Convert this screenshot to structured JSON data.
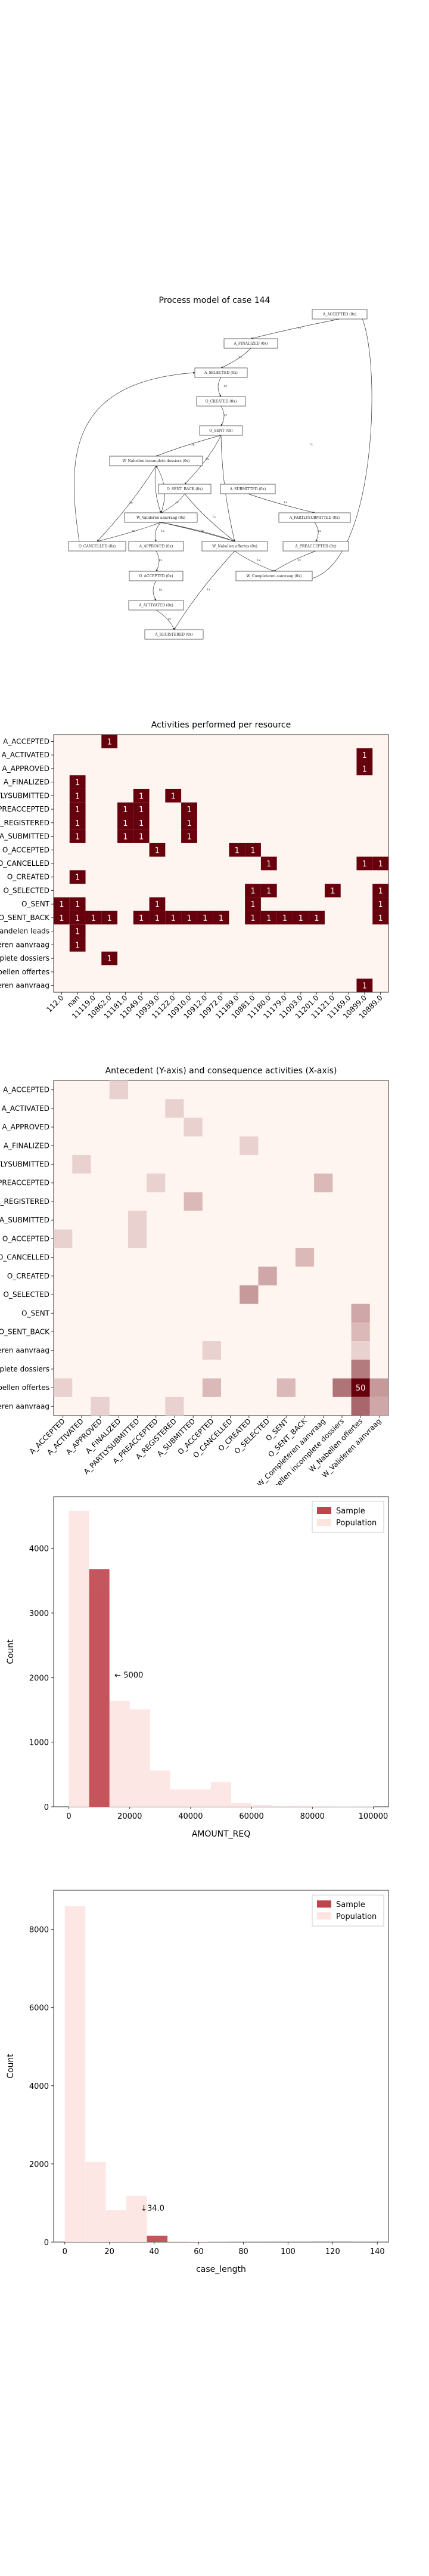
{
  "process_model": {
    "title": "Process model of case 144",
    "nodes": [
      {
        "id": "A_ACCEPTED",
        "label": "A_ACCEPTED (0x)"
      },
      {
        "id": "A_FINALIZED",
        "label": "A_FINALIZED (0x)"
      },
      {
        "id": "A_SELECTED",
        "label": "A_SELECTED (0x)"
      },
      {
        "id": "O_CREATED",
        "label": "O_CREATED (0x)"
      },
      {
        "id": "O_SENT",
        "label": "O_SENT (0x)"
      },
      {
        "id": "W_nabellen_onv",
        "label": "W_Nabellen incomplete dossiers (0x)"
      },
      {
        "id": "O_SENT_BACK",
        "label": "O_SENT_BACK (0x)"
      },
      {
        "id": "A_SUBMITTED",
        "label": "A_SUBMITTED (0x)"
      },
      {
        "id": "W_valideren",
        "label": "W_Valideren aanvraag (0x)"
      },
      {
        "id": "A_PARTLYSUBMITTED",
        "label": "A_PARTLYSUBMITTED (0x)"
      },
      {
        "id": "O_CANCELLED",
        "label": "O_CANCELLED (0x)"
      },
      {
        "id": "A_APPROVED",
        "label": "A_APPROVED (0x)"
      },
      {
        "id": "W_nabellen_off",
        "label": "W_Nabellen offertes (0x)"
      },
      {
        "id": "A_PREACCEPTED",
        "label": "A_PREACCEPTED (0x)"
      },
      {
        "id": "O_ACCEPTED",
        "label": "O_ACCEPTED (0x)"
      },
      {
        "id": "W_completeren",
        "label": "W_Completeren aanvraag (0x)"
      },
      {
        "id": "A_ACTIVATED",
        "label": "A_ACTIVATED (0x)"
      },
      {
        "id": "A_REGISTERED",
        "label": "A_REGISTERED (0x)"
      }
    ],
    "edge_labels": [
      "1x",
      "1x",
      "1x",
      "1x",
      "1x",
      "1x",
      "1x",
      "1x",
      "1x",
      "1x",
      "1x",
      "1x",
      "1x",
      "1x",
      "1x",
      "1x",
      "1x",
      "1x",
      "1x",
      "1x",
      "1x",
      "1x",
      "1x",
      "1x",
      "1x",
      "1x"
    ]
  },
  "chart_data": [
    {
      "type": "heatmap",
      "title": "Activities performed per resource",
      "xlabel": "",
      "ylabel": "",
      "x_tick_labels": [
        "112.0",
        "nan",
        "11119.0",
        "10862.0",
        "11181.0",
        "11049.0",
        "10939.0",
        "11122.0",
        "10910.0",
        "10912.0",
        "10972.0",
        "11189.0",
        "10881.0",
        "11180.0",
        "11179.0",
        "11003.0",
        "11201.0",
        "11121.0",
        "11169.0",
        "10899.0",
        "10889.0"
      ],
      "y_tick_labels": [
        "A_ACCEPTED",
        "A_ACTIVATED",
        "A_APPROVED",
        "A_FINALIZED",
        "A_PARTLYSUBMITTED",
        "A_PREACCEPTED",
        "A_REGISTERED",
        "A_SUBMITTED",
        "O_ACCEPTED",
        "O_CANCELLED",
        "O_CREATED",
        "O_SELECTED",
        "O_SENT",
        "O_SENT_BACK",
        "W_Afhandelen leads",
        "W_Completeren aanvraag",
        "W_Nabellen incomplete dossiers",
        "W_Nabellen offertes",
        "W_Valideren aanvraag"
      ],
      "cells": [
        {
          "row": 0,
          "col": 3,
          "value": 1
        },
        {
          "row": 1,
          "col": 19,
          "value": 1
        },
        {
          "row": 2,
          "col": 19,
          "value": 1
        },
        {
          "row": 3,
          "col": 1,
          "value": 1
        },
        {
          "row": 4,
          "col": 1,
          "value": 1
        },
        {
          "row": 4,
          "col": 5,
          "value": 1
        },
        {
          "row": 4,
          "col": 7,
          "value": 1
        },
        {
          "row": 5,
          "col": 1,
          "value": 1
        },
        {
          "row": 5,
          "col": 4,
          "value": 1
        },
        {
          "row": 5,
          "col": 5,
          "value": 1
        },
        {
          "row": 5,
          "col": 8,
          "value": 1
        },
        {
          "row": 6,
          "col": 1,
          "value": 1
        },
        {
          "row": 6,
          "col": 4,
          "value": 1
        },
        {
          "row": 6,
          "col": 5,
          "value": 1
        },
        {
          "row": 6,
          "col": 8,
          "value": 1
        },
        {
          "row": 7,
          "col": 1,
          "value": 1
        },
        {
          "row": 7,
          "col": 4,
          "value": 1
        },
        {
          "row": 7,
          "col": 5,
          "value": 1
        },
        {
          "row": 7,
          "col": 8,
          "value": 1
        },
        {
          "row": 8,
          "col": 6,
          "value": 1
        },
        {
          "row": 8,
          "col": 11,
          "value": 1
        },
        {
          "row": 8,
          "col": 12,
          "value": 1
        },
        {
          "row": 9,
          "col": 13,
          "value": 1
        },
        {
          "row": 9,
          "col": 19,
          "value": 1
        },
        {
          "row": 9,
          "col": 20,
          "value": 1
        },
        {
          "row": 10,
          "col": 1,
          "value": 1
        },
        {
          "row": 11,
          "col": 12,
          "value": 1
        },
        {
          "row": 11,
          "col": 13,
          "value": 1
        },
        {
          "row": 11,
          "col": 17,
          "value": 1
        },
        {
          "row": 11,
          "col": 20,
          "value": 1
        },
        {
          "row": 12,
          "col": 0,
          "value": 1
        },
        {
          "row": 12,
          "col": 1,
          "value": 1
        },
        {
          "row": 12,
          "col": 6,
          "value": 1
        },
        {
          "row": 12,
          "col": 12,
          "value": 1
        },
        {
          "row": 12,
          "col": 20,
          "value": 1
        },
        {
          "row": 13,
          "col": 0,
          "value": 1
        },
        {
          "row": 13,
          "col": 1,
          "value": 1
        },
        {
          "row": 13,
          "col": 2,
          "value": 1
        },
        {
          "row": 13,
          "col": 3,
          "value": 1
        },
        {
          "row": 13,
          "col": 5,
          "value": 1
        },
        {
          "row": 13,
          "col": 6,
          "value": 1
        },
        {
          "row": 13,
          "col": 7,
          "value": 1
        },
        {
          "row": 13,
          "col": 8,
          "value": 1
        },
        {
          "row": 13,
          "col": 9,
          "value": 1
        },
        {
          "row": 13,
          "col": 10,
          "value": 1
        },
        {
          "row": 13,
          "col": 12,
          "value": 1
        },
        {
          "row": 13,
          "col": 13,
          "value": 1
        },
        {
          "row": 13,
          "col": 14,
          "value": 1
        },
        {
          "row": 13,
          "col": 15,
          "value": 1
        },
        {
          "row": 13,
          "col": 16,
          "value": 1
        },
        {
          "row": 13,
          "col": 20,
          "value": 1
        },
        {
          "row": 14,
          "col": 1,
          "value": 1
        },
        {
          "row": 15,
          "col": 1,
          "value": 1
        },
        {
          "row": 16,
          "col": 3,
          "value": 1
        },
        {
          "row": 18,
          "col": 19,
          "value": 1
        }
      ]
    },
    {
      "type": "heatmap",
      "title": "Antecedent (Y-axis) and consequence activities (X-axis)",
      "xlabel": "",
      "ylabel": "",
      "x_tick_labels": [
        "A_ACCEPTED",
        "A_ACTIVATED",
        "A_APPROVED",
        "A_FINALIZED",
        "A_PARTLYSUBMITTED",
        "A_PREACCEPTED",
        "A_REGISTERED",
        "A_SUBMITTED",
        "O_ACCEPTED",
        "O_CANCELLED",
        "O_CREATED",
        "O_SELECTED",
        "O_SENT",
        "O_SENT_BACK",
        "W_Completeren aanvraag",
        "W_Nabellen incomplete dossiers",
        "W_Nabellen offertes",
        "W_Valideren aanvraag"
      ],
      "y_tick_labels": [
        "A_ACCEPTED",
        "A_ACTIVATED",
        "A_APPROVED",
        "A_FINALIZED",
        "A_PARTLYSUBMITTED",
        "A_PREACCEPTED",
        "A_REGISTERED",
        "A_SUBMITTED",
        "O_ACCEPTED",
        "O_CANCELLED",
        "O_CREATED",
        "O_SELECTED",
        "O_SENT",
        "O_SENT_BACK",
        "W_Completeren aanvraag",
        "W_Nabellen incomplete dossiers",
        "W_Nabellen offertes",
        "W_Valideren aanvraag"
      ],
      "max_value": 50,
      "cells": [
        {
          "row": 0,
          "col": 3,
          "value": 1
        },
        {
          "row": 1,
          "col": 6,
          "value": 1
        },
        {
          "row": 2,
          "col": 7,
          "value": 1
        },
        {
          "row": 3,
          "col": 10,
          "value": 1
        },
        {
          "row": 4,
          "col": 1,
          "value": 1
        },
        {
          "row": 5,
          "col": 5,
          "value": 1
        },
        {
          "row": 5,
          "col": 14,
          "value": 2
        },
        {
          "row": 6,
          "col": 7,
          "value": 2
        },
        {
          "row": 7,
          "col": 4,
          "value": 1
        },
        {
          "row": 8,
          "col": 0,
          "value": 1
        },
        {
          "row": 8,
          "col": 4,
          "value": 1
        },
        {
          "row": 9,
          "col": 13,
          "value": 2
        },
        {
          "row": 10,
          "col": 11,
          "value": 3
        },
        {
          "row": 11,
          "col": 10,
          "value": 4
        },
        {
          "row": 12,
          "col": 16,
          "value": 3
        },
        {
          "row": 13,
          "col": 16,
          "value": 2
        },
        {
          "row": 14,
          "col": 16,
          "value": 1
        },
        {
          "row": 14,
          "col": 8,
          "value": 1
        },
        {
          "row": 15,
          "col": 16,
          "value": 7
        },
        {
          "row": 16,
          "col": 0,
          "value": 1
        },
        {
          "row": 16,
          "col": 8,
          "value": 2
        },
        {
          "row": 16,
          "col": 12,
          "value": 2
        },
        {
          "row": 16,
          "col": 15,
          "value": 8
        },
        {
          "row": 16,
          "col": 16,
          "value": 50
        },
        {
          "row": 16,
          "col": 17,
          "value": 4
        },
        {
          "row": 17,
          "col": 2,
          "value": 1
        },
        {
          "row": 17,
          "col": 6,
          "value": 1
        },
        {
          "row": 17,
          "col": 16,
          "value": 10
        },
        {
          "row": 17,
          "col": 17,
          "value": 3
        }
      ]
    },
    {
      "type": "bar",
      "title": "",
      "xlabel": "AMOUNT_REQ",
      "ylabel": "Count",
      "xlim": [
        -5000,
        105000
      ],
      "ylim": [
        0,
        4800
      ],
      "x_ticks": [
        0,
        20000,
        40000,
        60000,
        80000,
        100000
      ],
      "y_ticks": [
        0,
        1000,
        2000,
        3000,
        4000
      ],
      "bin_edges": [
        0,
        6667,
        13333,
        20000,
        26667,
        33333,
        40000,
        46667,
        53333,
        60000,
        66667,
        73333,
        80000,
        86667,
        93333,
        100000
      ],
      "series": [
        {
          "name": "Sample",
          "color": "#c0444c",
          "values": [
            0,
            3680,
            0,
            0,
            0,
            0,
            0,
            0,
            0,
            0,
            0,
            0,
            0,
            0,
            0
          ]
        },
        {
          "name": "Population",
          "color": "#fde4e1",
          "values": [
            4580,
            3350,
            1640,
            1510,
            560,
            270,
            270,
            380,
            60,
            30,
            10,
            15,
            8,
            5,
            8
          ]
        }
      ],
      "annotation": "← 5000",
      "annotation_at": [
        15000,
        2000
      ],
      "legend_position": "top-right"
    },
    {
      "type": "bar",
      "title": "",
      "xlabel": "case_length",
      "ylabel": "Count",
      "xlim": [
        -5,
        145
      ],
      "ylim": [
        0,
        9000
      ],
      "x_ticks": [
        0,
        20,
        40,
        60,
        80,
        100,
        120,
        140
      ],
      "y_ticks": [
        0,
        2000,
        4000,
        6000,
        8000
      ],
      "bin_edges": [
        0,
        9.2,
        18.4,
        27.6,
        36.8,
        46,
        55.2,
        64.4,
        73.6,
        82.8,
        92,
        101.2,
        110.4,
        119.6,
        128.8,
        138
      ],
      "series": [
        {
          "name": "Sample",
          "color": "#c0444c",
          "values": [
            0,
            0,
            0,
            0,
            160,
            0,
            0,
            0,
            0,
            0,
            0,
            0,
            0,
            0,
            0
          ]
        },
        {
          "name": "Population",
          "color": "#fde4e1",
          "values": [
            8600,
            2050,
            820,
            1180,
            160,
            20,
            10,
            5,
            3,
            2,
            1,
            1,
            0,
            0,
            1
          ]
        }
      ],
      "annotation": "↓34.0",
      "annotation_at": [
        34,
        800
      ],
      "legend_position": "top-right"
    }
  ]
}
